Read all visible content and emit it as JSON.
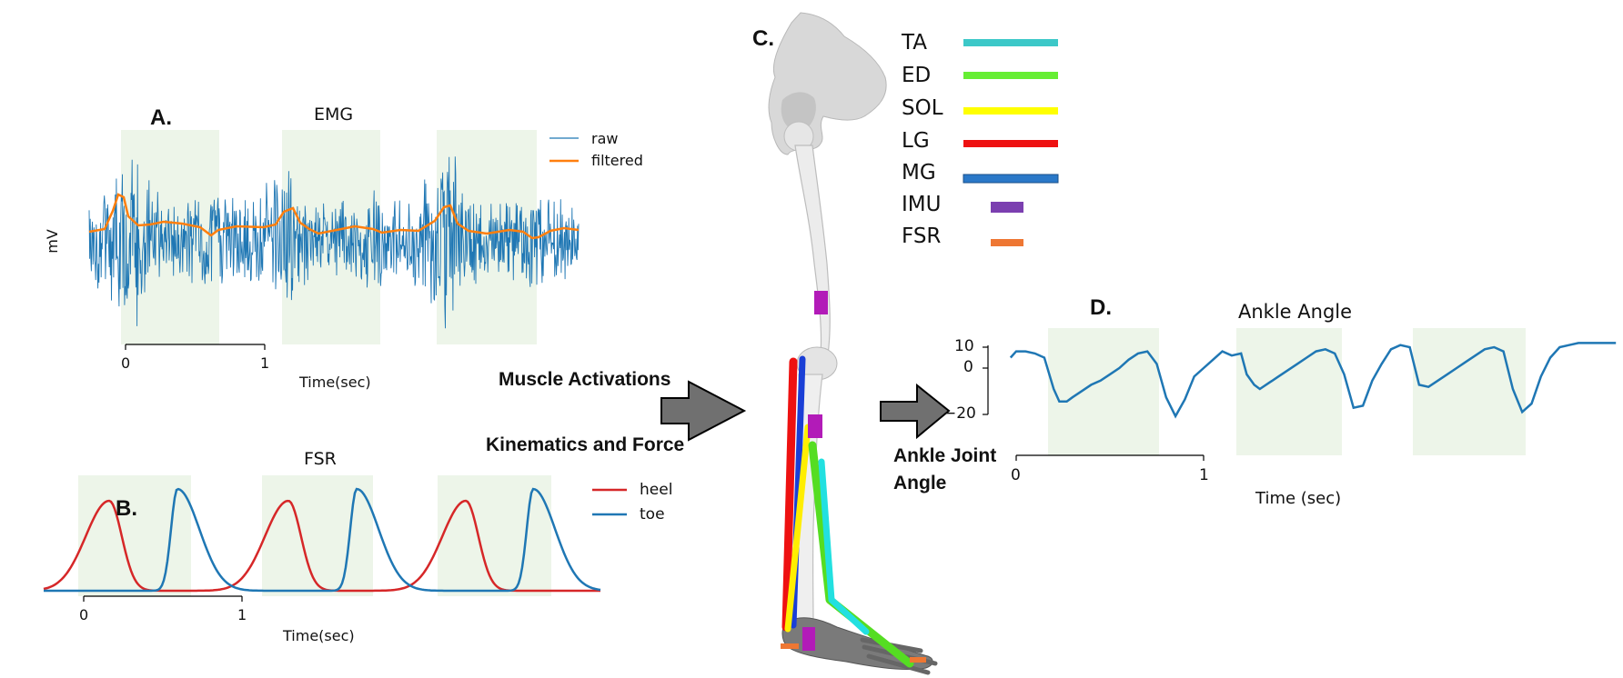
{
  "panels": {
    "a": {
      "letter": "A.",
      "title": "EMG",
      "ylabel": "mV",
      "xlabel": "Time(sec)",
      "ticks": [
        "0",
        "1"
      ],
      "legend": [
        "raw",
        "filtered"
      ]
    },
    "b": {
      "letter": "B.",
      "title": "FSR",
      "xlabel": "Time(sec)",
      "ticks": [
        "0",
        "1"
      ],
      "legend": [
        "heel",
        "toe"
      ]
    },
    "c": {
      "letter": "C."
    },
    "d": {
      "letter": "D.",
      "title": "Ankle Angle",
      "xlabel": "Time (sec)",
      "xticks": [
        "0",
        "1"
      ],
      "yticks": [
        "10",
        "0",
        "−20"
      ]
    }
  },
  "flow": {
    "muscle_activations": "Muscle Activations",
    "kinematics_force": "Kinematics and Force",
    "ankle_joint": [
      "Ankle Joint",
      "Angle"
    ]
  },
  "muscle_legend": [
    {
      "label": "TA",
      "color": "#3cc8c8"
    },
    {
      "label": "ED",
      "color": "#66ee33"
    },
    {
      "label": "SOL",
      "color": "#ffff00"
    },
    {
      "label": "LG",
      "color": "#ee1111"
    },
    {
      "label": "MG",
      "color": "#2a78c8"
    },
    {
      "label": "IMU",
      "color": "#7b3fb0"
    },
    {
      "label": "FSR",
      "color": "#ee7733"
    }
  ],
  "colors": {
    "raw": "#1f77b4",
    "filtered": "#ff7f0e",
    "heel": "#d62728",
    "toe": "#1f77b4",
    "stance_shade": "#e6f2e0",
    "arrow": "#707070"
  },
  "chart_data": [
    {
      "type": "line",
      "title": "EMG",
      "xlabel": "Time(sec)",
      "ylabel": "mV",
      "series": [
        {
          "name": "raw"
        },
        {
          "name": "filtered"
        }
      ],
      "stance_phases_sec": [
        [
          0.0,
          0.7
        ],
        [
          1.13,
          1.83
        ],
        [
          2.24,
          2.96
        ]
      ],
      "grid": false,
      "legend": "top-right"
    },
    {
      "type": "line",
      "title": "FSR",
      "xlabel": "Time(sec)",
      "series": [
        {
          "name": "heel"
        },
        {
          "name": "toe"
        }
      ],
      "stance_phases_sec": [
        [
          -0.03,
          0.67
        ],
        [
          1.13,
          1.83
        ],
        [
          2.24,
          2.96
        ]
      ],
      "grid": false,
      "legend": "top-right"
    },
    {
      "type": "line",
      "title": "Ankle Angle",
      "xlabel": "Time (sec)",
      "yticks": [
        10,
        0,
        -20
      ],
      "series": [
        {
          "name": "ankle angle",
          "t": [
            -0.03,
            0.0,
            0.05,
            0.1,
            0.15,
            0.2,
            0.23,
            0.27,
            0.3,
            0.35,
            0.4,
            0.45,
            0.5,
            0.55,
            0.6,
            0.65,
            0.7,
            0.75,
            0.8,
            0.85,
            0.9,
            0.95,
            1.0,
            1.05,
            1.1,
            1.15,
            1.2,
            1.23,
            1.27,
            1.3,
            1.35,
            1.4,
            1.45,
            1.5,
            1.55,
            1.6,
            1.65,
            1.7,
            1.75,
            1.8,
            1.85,
            1.9,
            1.95,
            2.0,
            2.05,
            2.1,
            2.15,
            2.2,
            2.25,
            2.3,
            2.35,
            2.4,
            2.45,
            2.5,
            2.55,
            2.6,
            2.65,
            2.7,
            2.75,
            2.8,
            2.85,
            2.9,
            2.95,
            3.0,
            3.05,
            3.1,
            3.15,
            3.2
          ],
          "values": [
            5,
            8,
            8,
            7,
            5,
            -10,
            -16,
            -16,
            -14,
            -11,
            -8,
            -6,
            -3,
            0,
            4,
            7,
            8,
            2,
            -14,
            -23,
            -15,
            -4,
            0,
            4,
            8,
            6,
            7,
            -3,
            -8,
            -10,
            -7,
            -4,
            -1,
            2,
            5,
            8,
            9,
            7,
            -3,
            -19,
            -18,
            -6,
            2,
            9,
            11,
            10,
            -8,
            -9,
            -6,
            -3,
            0,
            3,
            6,
            9,
            10,
            8,
            -10,
            -21,
            -17,
            -4,
            5,
            10,
            11,
            12,
            12,
            12,
            12,
            12
          ]
        }
      ],
      "stance_phases_sec": [
        [
          0.17,
          0.77
        ],
        [
          1.17,
          1.73
        ],
        [
          2.1,
          2.72
        ]
      ]
    }
  ]
}
